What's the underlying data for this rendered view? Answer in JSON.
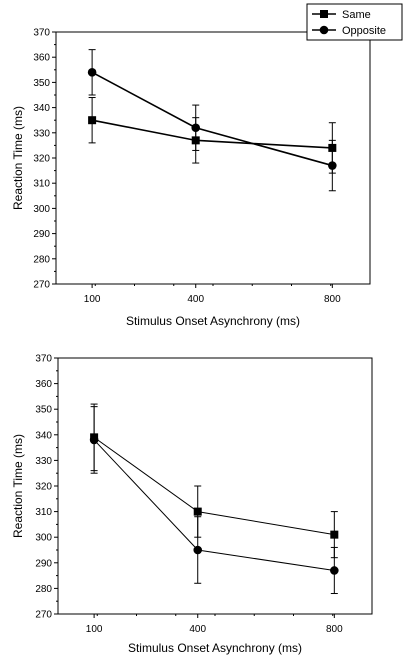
{
  "chart_data": [
    {
      "type": "line",
      "xlabel": "Stimulus Onset Asynchrony (ms)",
      "ylabel": "Reaction Time (ms)",
      "ylim": [
        270,
        370
      ],
      "yticks": [
        270,
        280,
        290,
        300,
        310,
        320,
        330,
        340,
        350,
        360,
        370
      ],
      "categories": [
        "100",
        "400",
        "800"
      ],
      "legend": {
        "position": "top-right",
        "entries": [
          "Same",
          "Opposite"
        ]
      },
      "series": [
        {
          "name": "Same",
          "marker": "square",
          "values": [
            335,
            327,
            324
          ],
          "error": [
            9,
            9,
            10
          ]
        },
        {
          "name": "Opposite",
          "marker": "circle",
          "values": [
            354,
            332,
            317
          ],
          "error": [
            9,
            9,
            10
          ]
        }
      ]
    },
    {
      "type": "line",
      "xlabel": "Stimulus Onset Asynchrony (ms)",
      "ylabel": "Reaction Time (ms)",
      "ylim": [
        270,
        370
      ],
      "yticks": [
        270,
        280,
        290,
        300,
        310,
        320,
        330,
        340,
        350,
        360,
        370
      ],
      "categories": [
        "100",
        "400",
        "800"
      ],
      "series": [
        {
          "name": "Same",
          "marker": "square",
          "values": [
            339,
            310,
            301
          ],
          "error": [
            13,
            10,
            9
          ]
        },
        {
          "name": "Opposite",
          "marker": "circle",
          "values": [
            338,
            295,
            287
          ],
          "error": [
            13,
            13,
            9
          ]
        }
      ]
    }
  ]
}
